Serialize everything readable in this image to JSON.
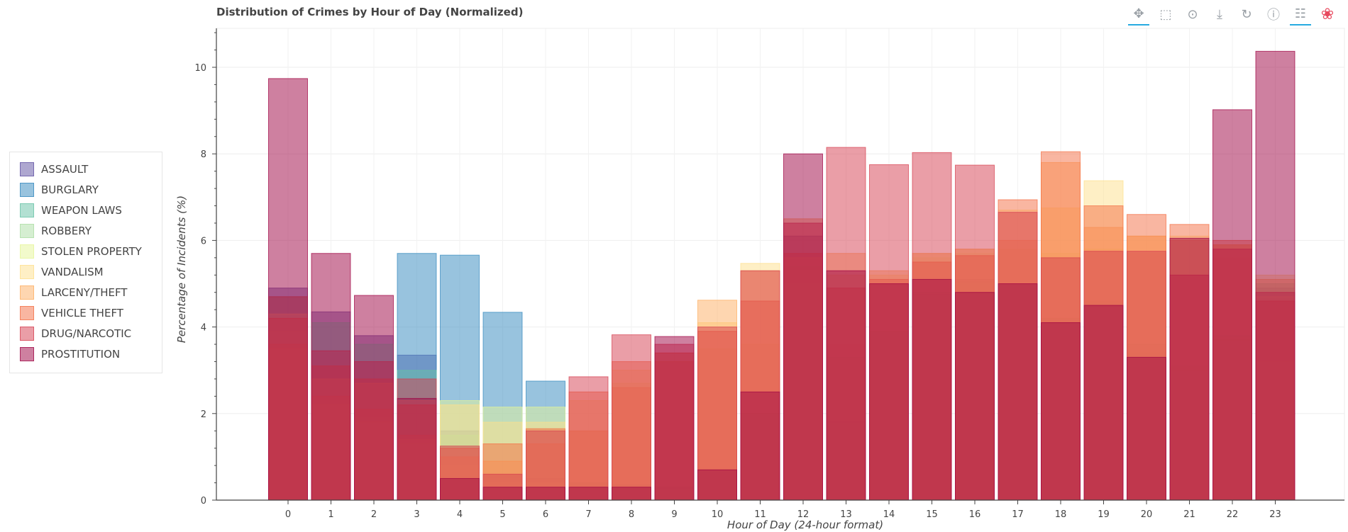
{
  "chart_data": {
    "type": "bar",
    "title": "Distribution of Crimes by Hour of Day (Normalized)",
    "xlabel": "Hour of Day (24-hour format)",
    "ylabel": "Percentage of Incidents (%)",
    "categories": [
      "0",
      "1",
      "2",
      "3",
      "4",
      "5",
      "6",
      "7",
      "8",
      "9",
      "10",
      "11",
      "12",
      "13",
      "14",
      "15",
      "16",
      "17",
      "18",
      "19",
      "20",
      "21",
      "22",
      "23"
    ],
    "ylim": [
      0,
      10.9
    ],
    "yticks": [
      0,
      2,
      4,
      6,
      8,
      10
    ],
    "grid": true,
    "legend_position": "left",
    "series": [
      {
        "name": "ASSAULT",
        "color": "#5e4fa2",
        "values": [
          4.9,
          4.35,
          3.8,
          3.35,
          1.6,
          0.6,
          0.5,
          0.4,
          0.35,
          0.28,
          0.7,
          2.0,
          6.1,
          1.8,
          3.9,
          4.75,
          5.1,
          5.0,
          4.2,
          4.55,
          3.4,
          3.0,
          3.7,
          4.9
        ]
      },
      {
        "name": "BURGLARY",
        "color": "#3288bd",
        "values": [
          3.1,
          1.85,
          1.65,
          5.7,
          5.66,
          4.34,
          2.75,
          0.3,
          0.3,
          0.3,
          0.7,
          2.0,
          4.4,
          1.8,
          3.7,
          4.7,
          5.0,
          5.0,
          4.1,
          4.5,
          3.3,
          2.95,
          3.7,
          3.2
        ]
      },
      {
        "name": "WEAPON LAWS",
        "color": "#66c2a5",
        "values": [
          4.7,
          4.1,
          3.6,
          3.0,
          1.5,
          0.5,
          0.4,
          0.4,
          0.35,
          0.3,
          0.7,
          2.0,
          5.4,
          3.3,
          3.9,
          4.8,
          5.05,
          5.0,
          4.2,
          4.6,
          3.6,
          3.1,
          3.8,
          5.0
        ]
      },
      {
        "name": "ROBBERY",
        "color": "#abdda4",
        "values": [
          3.9,
          2.3,
          1.9,
          1.3,
          0.8,
          0.4,
          0.4,
          0.4,
          0.3,
          0.3,
          0.7,
          2.0,
          5.0,
          2.0,
          3.9,
          4.8,
          5.0,
          5.0,
          4.2,
          4.6,
          3.4,
          3.0,
          3.7,
          3.2
        ]
      },
      {
        "name": "STOLEN PROPERTY",
        "color": "#e6f598",
        "values": [
          3.5,
          2.2,
          1.8,
          1.4,
          2.3,
          2.15,
          2.15,
          1.6,
          2.7,
          3.2,
          3.5,
          3.6,
          5.3,
          3.6,
          5.0,
          5.6,
          5.7,
          5.8,
          5.7,
          5.8,
          5.7,
          5.2,
          5.6,
          4.7
        ]
      },
      {
        "name": "VANDALISM",
        "color": "#fee08b",
        "values": [
          4.3,
          2.8,
          2.7,
          2.3,
          2.2,
          1.8,
          1.8,
          2.3,
          3.0,
          3.4,
          4.1,
          5.47,
          5.6,
          5.2,
          5.2,
          5.7,
          5.8,
          6.7,
          6.75,
          7.38,
          6.1,
          6.1,
          5.9,
          5.2
        ]
      },
      {
        "name": "LARCENY/THEFT",
        "color": "#fdae61",
        "values": [
          3.6,
          2.4,
          2.1,
          1.5,
          1.0,
          0.9,
          1.3,
          1.6,
          2.6,
          3.2,
          4.62,
          5.3,
          6.5,
          5.7,
          5.3,
          5.7,
          5.8,
          6.0,
          7.8,
          6.3,
          6.1,
          6.0,
          5.9,
          5.1
        ]
      },
      {
        "name": "VEHICLE THEFT",
        "color": "#f46d43",
        "values": [
          4.2,
          3.1,
          2.8,
          2.2,
          1.2,
          1.3,
          1.65,
          2.5,
          3.2,
          3.4,
          3.9,
          4.6,
          5.7,
          4.9,
          5.1,
          5.5,
          5.65,
          6.94,
          8.05,
          6.8,
          6.6,
          6.37,
          6.0,
          4.6
        ]
      },
      {
        "name": "DRUG/NARCOTIC",
        "color": "#d53e4f",
        "values": [
          4.7,
          3.45,
          3.2,
          2.8,
          1.25,
          0.6,
          1.6,
          2.85,
          3.82,
          3.6,
          4.0,
          5.3,
          6.4,
          8.15,
          7.75,
          8.03,
          7.74,
          6.65,
          5.6,
          5.75,
          5.75,
          5.2,
          5.8,
          4.8
        ]
      },
      {
        "name": "PROSTITUTION",
        "color": "#9e0142",
        "values": [
          9.74,
          5.7,
          4.73,
          2.35,
          0.5,
          0.3,
          0.3,
          0.3,
          0.3,
          3.78,
          0.7,
          2.5,
          8.0,
          5.3,
          5.0,
          5.1,
          4.8,
          5.0,
          4.1,
          4.5,
          3.3,
          6.05,
          9.02,
          10.37
        ]
      }
    ]
  },
  "legend": {
    "items": [
      {
        "label": "ASSAULT",
        "color": "#5e4fa2"
      },
      {
        "label": "BURGLARY",
        "color": "#3288bd"
      },
      {
        "label": "WEAPON LAWS",
        "color": "#66c2a5"
      },
      {
        "label": "ROBBERY",
        "color": "#abdda4"
      },
      {
        "label": "STOLEN PROPERTY",
        "color": "#e6f598"
      },
      {
        "label": "VANDALISM",
        "color": "#fee08b"
      },
      {
        "label": "LARCENY/THEFT",
        "color": "#fdae61"
      },
      {
        "label": "VEHICLE THEFT",
        "color": "#f46d43"
      },
      {
        "label": "DRUG/NARCOTIC",
        "color": "#d53e4f"
      },
      {
        "label": "PROSTITUTION",
        "color": "#9e0142"
      }
    ]
  },
  "toolbar": {
    "tools": [
      {
        "icon": "pan-icon",
        "active": true
      },
      {
        "icon": "box-zoom-icon",
        "active": false
      },
      {
        "icon": "wheel-zoom-icon",
        "active": false
      },
      {
        "icon": "save-icon",
        "active": false
      },
      {
        "icon": "reset-icon",
        "active": false
      },
      {
        "icon": "help-icon",
        "active": false
      },
      {
        "icon": "hover-icon",
        "active": true
      },
      {
        "icon": "bokeh-logo-icon",
        "active": false
      }
    ]
  }
}
